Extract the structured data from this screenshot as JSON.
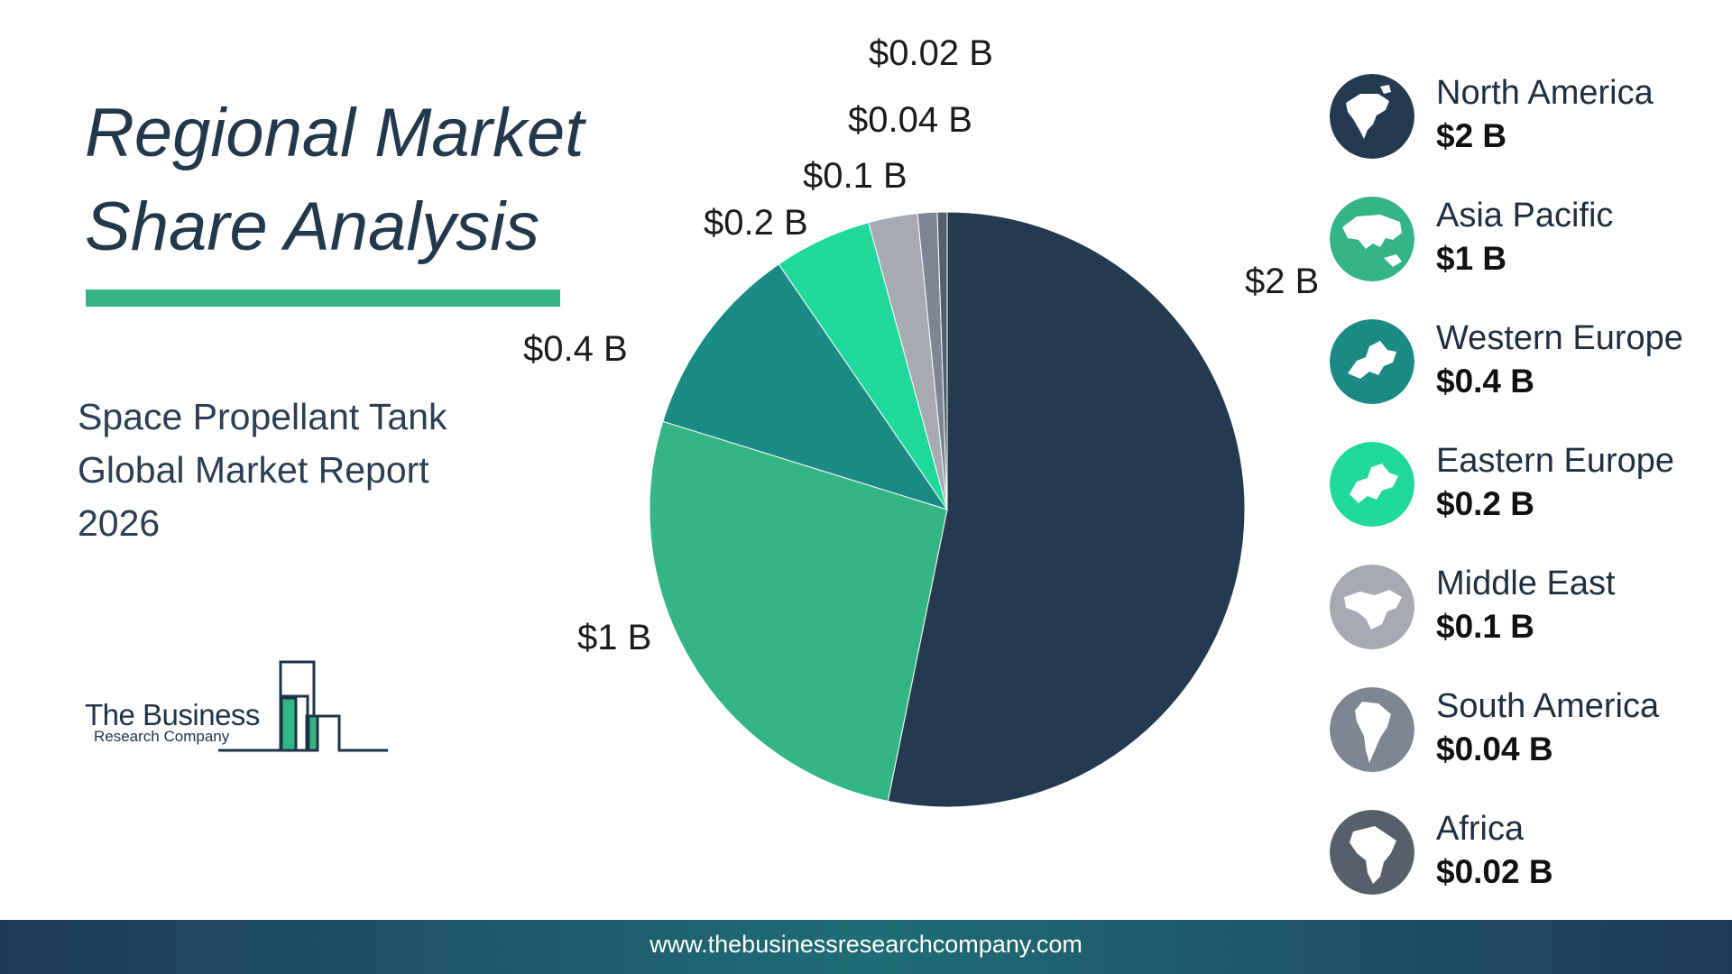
{
  "title": {
    "line1": "Regional Market",
    "line2": "Share Analysis"
  },
  "subtitle": {
    "line1": "Space Propellant Tank",
    "line2": "Global Market Report",
    "line3": "2026"
  },
  "logo": {
    "name": "The Business",
    "tagline": "Research Company"
  },
  "footer": {
    "url": "www.thebusinessresearchcompany.com"
  },
  "colors": {
    "accent": "#33b585",
    "dark": "#243a50",
    "north_america": "#243a50",
    "asia_pacific": "#33b585",
    "western_europe": "#1b8a84",
    "eastern_europe": "#1fd89b",
    "middle_east": "#a6abb3",
    "south_america": "#7d8794",
    "africa": "#55606b"
  },
  "legend": [
    {
      "name": "North America",
      "value": "$2 B",
      "icon": "north-america-globe-icon",
      "color": "#243a50"
    },
    {
      "name": "Asia Pacific",
      "value": "$1 B",
      "icon": "asia-pacific-globe-icon",
      "color": "#33b585"
    },
    {
      "name": "Western Europe",
      "value": "$0.4 B",
      "icon": "western-europe-globe-icon",
      "color": "#1b8a84"
    },
    {
      "name": "Eastern Europe",
      "value": "$0.2 B",
      "icon": "eastern-europe-globe-icon",
      "color": "#1fd89b"
    },
    {
      "name": "Middle East",
      "value": "$0.1 B",
      "icon": "middle-east-globe-icon",
      "color": "#a6abb3"
    },
    {
      "name": "South America",
      "value": "$0.04 B",
      "icon": "south-america-globe-icon",
      "color": "#7d8794"
    },
    {
      "name": "Africa",
      "value": "$0.02 B",
      "icon": "africa-globe-icon",
      "color": "#55606b"
    }
  ],
  "chart_data": {
    "type": "pie",
    "categories": [
      "North America",
      "Asia Pacific",
      "Western Europe",
      "Eastern Europe",
      "Middle East",
      "South America",
      "Africa"
    ],
    "values": [
      2,
      1,
      0.4,
      0.2,
      0.1,
      0.04,
      0.02
    ],
    "data_labels": [
      "$2 B",
      "$1 B",
      "$0.4 B",
      "$0.2 B",
      "$0.1 B",
      "$0.04 B",
      "$0.02 B"
    ],
    "colors": [
      "#243a50",
      "#33b585",
      "#1b8a84",
      "#1fd89b",
      "#a6abb3",
      "#7d8794",
      "#55606b"
    ],
    "start_angle": "12 o'clock",
    "direction": "clockwise",
    "legend": "right"
  }
}
